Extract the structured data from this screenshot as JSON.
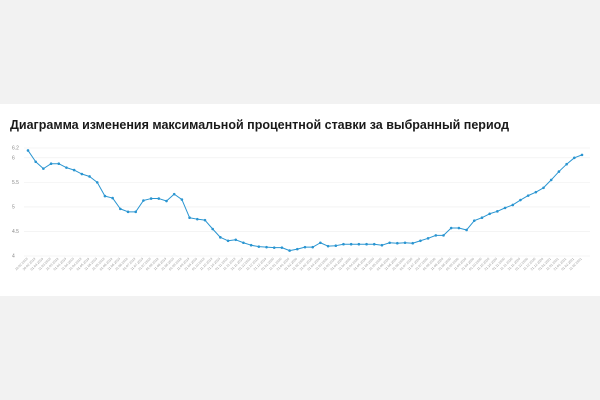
{
  "chart_data": {
    "type": "line",
    "title": "Диаграмма изменения максимальной процентной ставки за выбранный период",
    "xlabel": "",
    "ylabel": "",
    "ylim": [
      4,
      6.2
    ],
    "yticks": [
      "4",
      "4.5",
      "5",
      "5.5",
      "6",
      "6.2"
    ],
    "grid": true,
    "x": [
      "10.02.2019",
      "20.02.2019",
      "01.03.2019",
      "11.03.2019",
      "21.03.2019",
      "01.04.2019",
      "11.04.2019",
      "21.04.2019",
      "01.05.2019",
      "11.05.2019",
      "21.05.2019",
      "01.06.2019",
      "11.06.2019",
      "21.06.2019",
      "01.07.2019",
      "11.07.2019",
      "21.07.2019",
      "01.08.2019",
      "11.08.2019",
      "21.08.2019",
      "01.09.2019",
      "11.09.2019",
      "21.09.2019",
      "01.10.2019",
      "11.10.2019",
      "21.10.2019",
      "01.11.2019",
      "11.11.2019",
      "21.11.2019",
      "01.12.2019",
      "11.12.2019",
      "21.12.2019",
      "01.01.2020",
      "11.01.2020",
      "21.01.2020",
      "01.02.2020",
      "11.02.2020",
      "21.02.2020",
      "01.03.2020",
      "11.03.2020",
      "21.03.2020",
      "01.04.2020",
      "11.04.2020",
      "21.04.2020",
      "01.05.2020",
      "11.05.2020",
      "21.05.2020",
      "01.06.2020",
      "11.06.2020",
      "21.06.2020",
      "01.07.2020",
      "11.07.2020",
      "21.07.2020",
      "01.08.2020",
      "11.08.2020",
      "21.08.2020",
      "01.09.2020",
      "11.09.2020",
      "21.09.2020",
      "01.10.2020",
      "11.10.2020",
      "21.10.2020",
      "01.11.2020",
      "11.11.2020",
      "21.11.2020",
      "01.12.2020",
      "11.12.2020",
      "21.12.2020",
      "01.01.2021",
      "11.01.2021",
      "21.01.2021",
      "01.02.2021",
      "11.02.2021"
    ],
    "series": [
      {
        "name": "",
        "color": "#2a95d1",
        "values": [
          6.15,
          5.92,
          5.78,
          5.88,
          5.88,
          5.8,
          5.75,
          5.67,
          5.62,
          5.5,
          5.22,
          5.18,
          4.96,
          4.9,
          4.9,
          5.13,
          5.17,
          5.17,
          5.12,
          5.26,
          5.15,
          4.78,
          4.75,
          4.73,
          4.55,
          4.38,
          4.31,
          4.33,
          4.27,
          4.22,
          4.19,
          4.18,
          4.17,
          4.17,
          4.11,
          4.14,
          4.18,
          4.18,
          4.27,
          4.2,
          4.21,
          4.24,
          4.24,
          4.24,
          4.24,
          4.24,
          4.22,
          4.27,
          4.26,
          4.27,
          4.26,
          4.31,
          4.36,
          4.42,
          4.42,
          4.57,
          4.57,
          4.53,
          4.72,
          4.78,
          4.86,
          4.91,
          4.98,
          5.04,
          5.14,
          5.23,
          5.3,
          5.39,
          5.55,
          5.72,
          5.87,
          6.0,
          6.06
        ]
      }
    ]
  }
}
